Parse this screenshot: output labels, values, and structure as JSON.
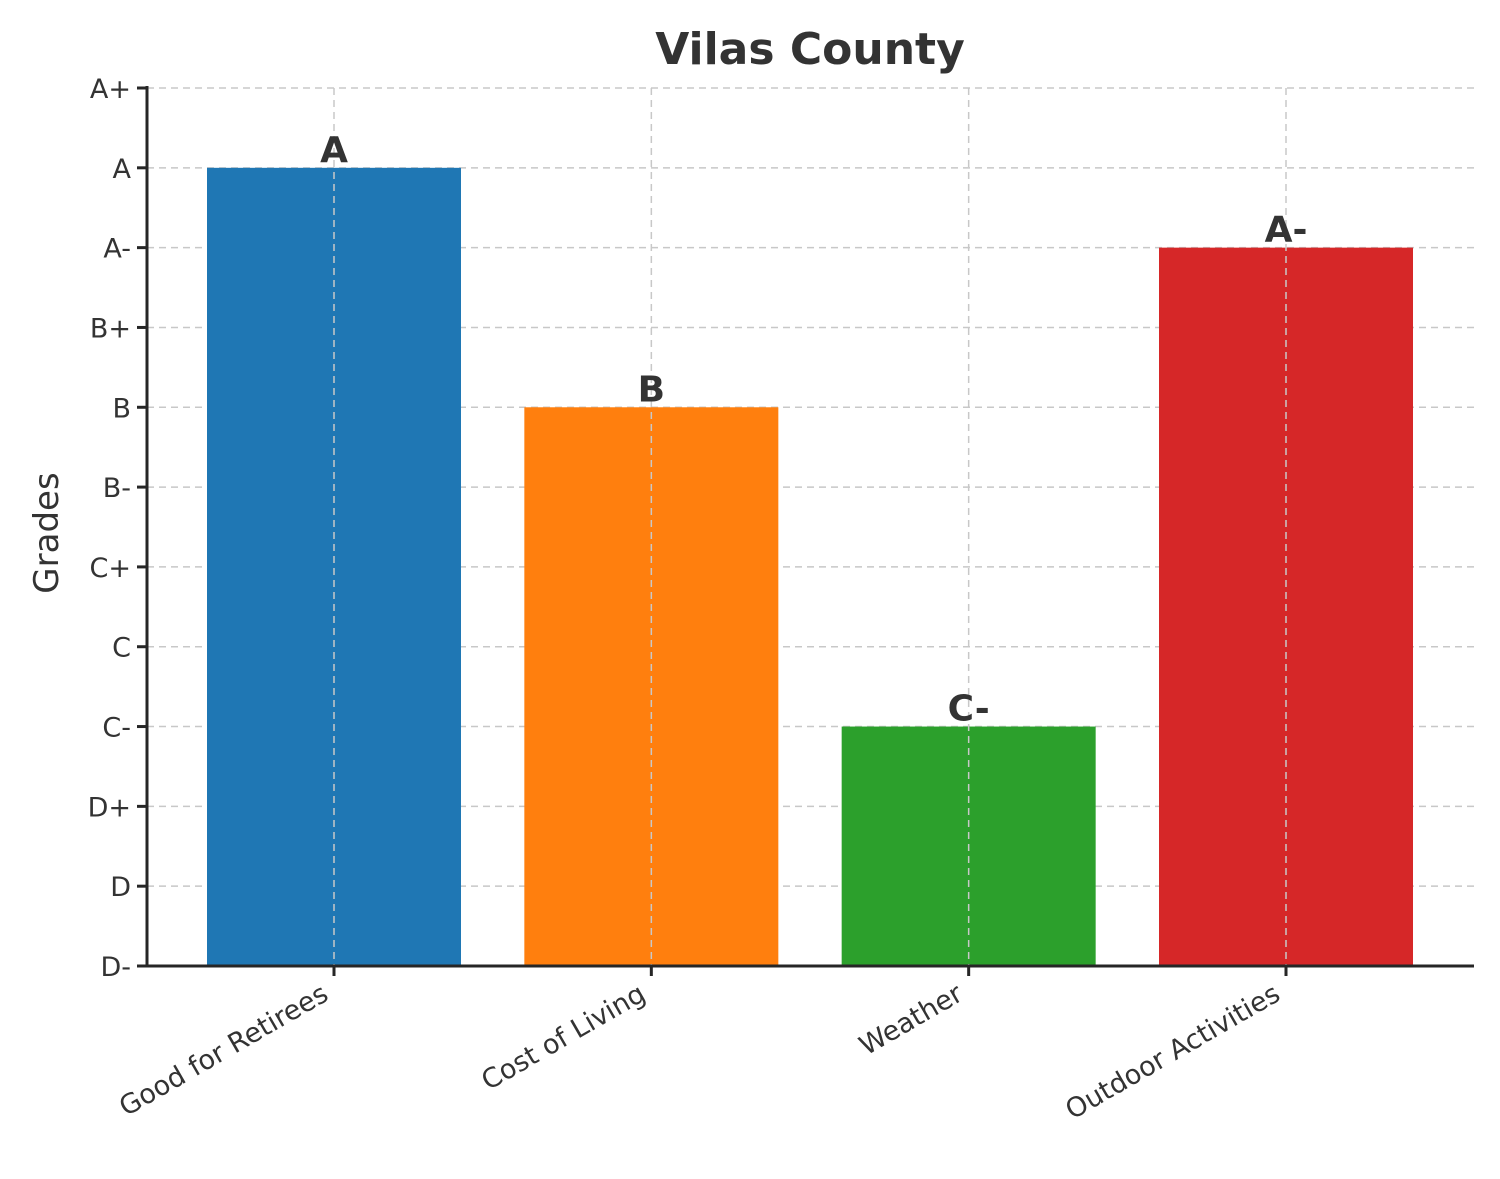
{
  "chart_data": {
    "type": "bar",
    "title": "Vilas County",
    "xlabel": "",
    "ylabel": "Grades",
    "categories": [
      "Good for Retirees",
      "Cost of Living",
      "Weather",
      "Outdoor Activities"
    ],
    "grade_scale": [
      "D-",
      "D",
      "D+",
      "C-",
      "C",
      "C+",
      "B-",
      "B",
      "B+",
      "A-",
      "A",
      "A+"
    ],
    "values": [
      10,
      7,
      3,
      9
    ],
    "value_labels": [
      "A",
      "B",
      "C-",
      "A-"
    ],
    "colors": [
      "#1f77b4",
      "#ff7f0e",
      "#2ca02c",
      "#d62728"
    ],
    "ylim": [
      0,
      11
    ],
    "grid": true
  }
}
